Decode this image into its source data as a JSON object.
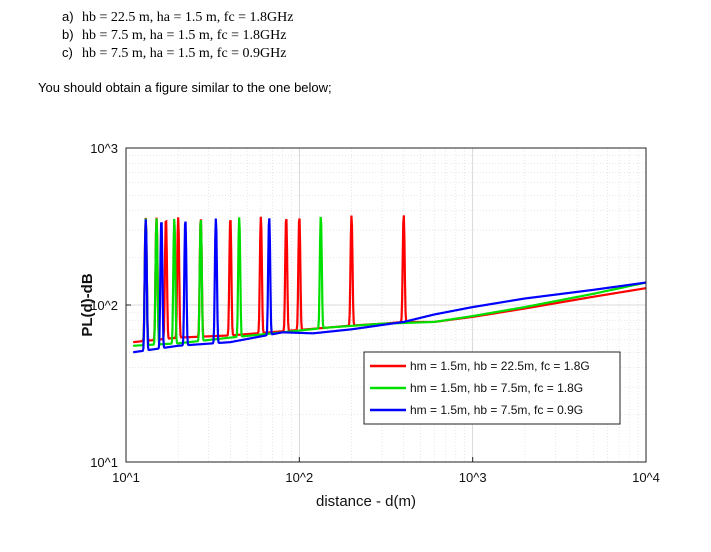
{
  "intro_list": [
    {
      "label": "a)",
      "text": "hb = 22.5 m, ha = 1.5 m, fc = 1.8GHz"
    },
    {
      "label": "b)",
      "text": "hb = 7.5 m, ha = 1.5 m, fc = 1.8GHz"
    },
    {
      "label": "c)",
      "text": "hb = 7.5 m, ha = 1.5 m, fc = 0.9GHz"
    }
  ],
  "intro_text": "You should obtain a figure similar to the one below;",
  "chart_data": {
    "type": "line",
    "title": "",
    "xlabel": "distance - d(m)",
    "ylabel": "PL(d)-dB",
    "x_scale": "log",
    "y_scale": "log",
    "xlim": [
      10,
      10000
    ],
    "ylim": [
      10,
      1000
    ],
    "x_ticks": [
      "10^1",
      "10^2",
      "10^3",
      "10^4"
    ],
    "y_ticks": [
      "10^1",
      "10^2",
      "10^3"
    ],
    "grid": true,
    "legend_position": "right",
    "series": [
      {
        "name": "hm = 1.5m, hb = 22.5m, fc = 1.8G",
        "color": "#ff0000",
        "x": [
          11,
          20,
          40,
          80,
          150,
          200,
          300,
          400,
          600,
          1000,
          2000,
          5000,
          10000
        ],
        "y": [
          58,
          62,
          64,
          68,
          72,
          74,
          76,
          78,
          78,
          84,
          95,
          113,
          128
        ],
        "peaks": [
          13,
          15,
          17,
          20,
          27,
          40,
          60,
          84,
          100,
          200,
          400
        ]
      },
      {
        "name": "hm = 1.5m, hb = 7.5m, fc = 1.8G",
        "color": "#00e000",
        "x": [
          11,
          20,
          40,
          80,
          150,
          300,
          600,
          1000,
          2000,
          5000,
          10000
        ],
        "y": [
          55,
          57,
          62,
          67,
          72,
          76,
          78,
          85,
          97,
          118,
          139
        ],
        "peaks": [
          13,
          15,
          19,
          27,
          45,
          133
        ]
      },
      {
        "name": "hm = 1.5m, hb = 7.5m, fc = 0.9G",
        "color": "#0000ff",
        "x": [
          11,
          20,
          40,
          80,
          120,
          200,
          400,
          600,
          1000,
          2000,
          5000,
          10000
        ],
        "y": [
          50,
          55,
          58,
          67,
          66,
          70,
          78,
          87,
          97,
          110,
          125,
          139
        ],
        "peaks": [
          13,
          16,
          22,
          33,
          67
        ]
      }
    ]
  }
}
